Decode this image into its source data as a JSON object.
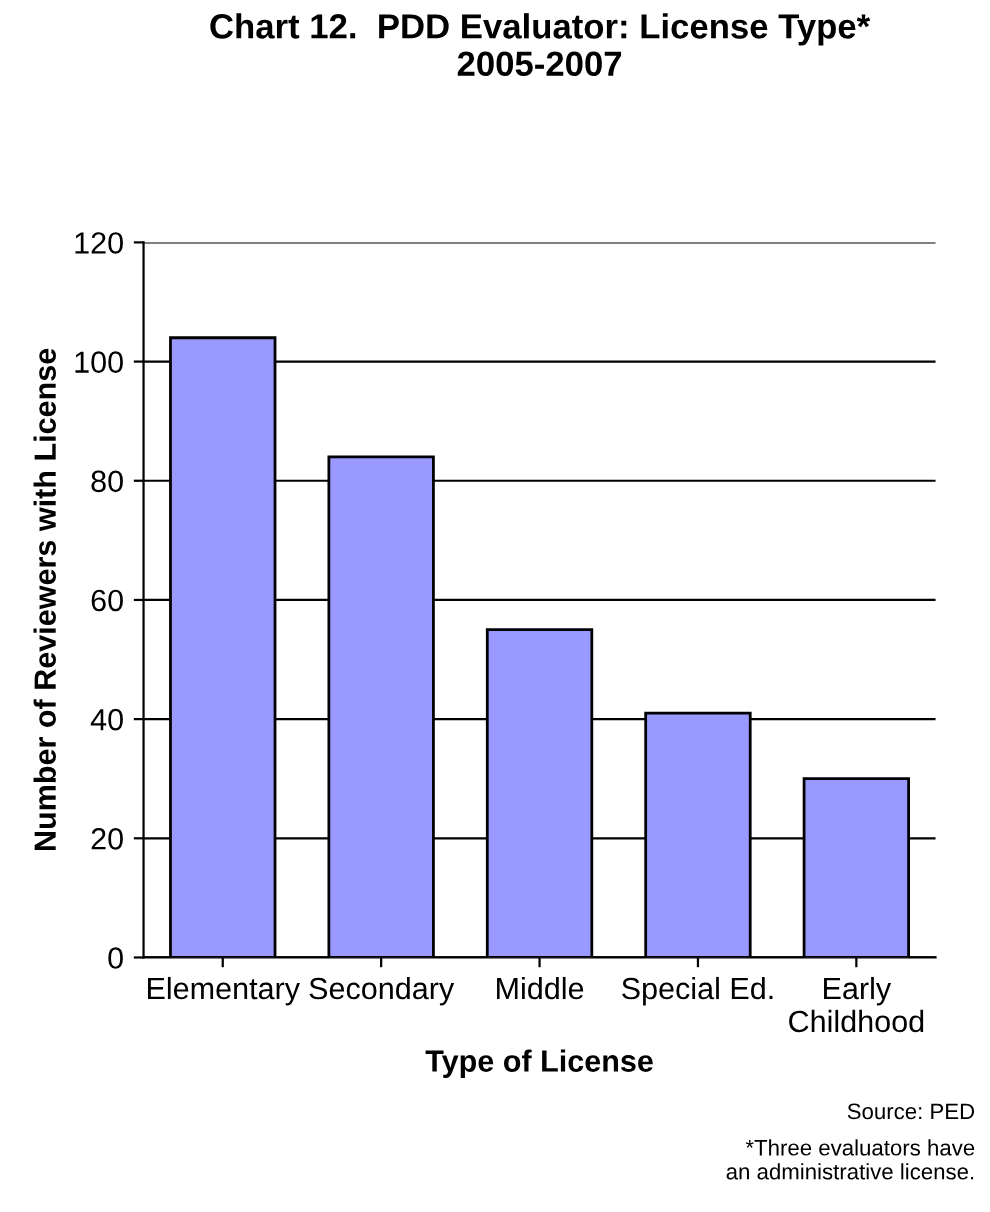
{
  "chart_data": {
    "type": "bar",
    "title": "Chart 12.  PDD Evaluator: License Type*\n2005-2007",
    "xlabel": "Type of License",
    "ylabel": "Number of Reviewers with License",
    "categories": [
      "Elementary",
      "Secondary",
      "Middle",
      "Special Ed.",
      "Early\nChildhood"
    ],
    "values": [
      104,
      84,
      55,
      41,
      30
    ],
    "color": "#9999ff",
    "ylim": [
      0,
      120
    ],
    "yticks": [
      0,
      20,
      40,
      60,
      80,
      100,
      120
    ],
    "grid": "y",
    "annotations": [
      "Source: PED",
      "*Three evaluators have\nan administrative license."
    ]
  }
}
